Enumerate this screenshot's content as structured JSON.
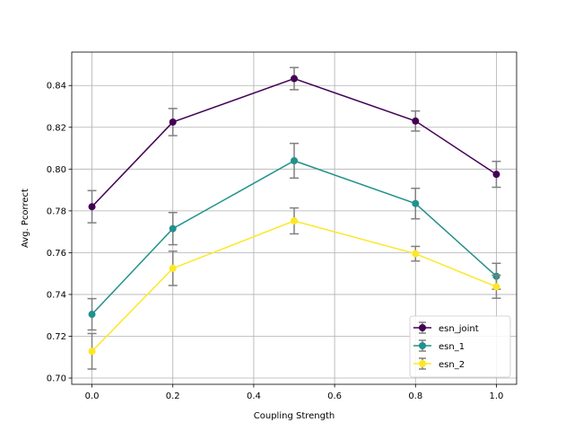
{
  "chart_data": {
    "type": "line",
    "title": "",
    "xlabel": "Coupling Strength",
    "ylabel": "Avg. Pcorrect",
    "xlim": [
      -0.05,
      1.05
    ],
    "ylim": [
      0.697,
      0.856
    ],
    "xticks": [
      0.0,
      0.2,
      0.4,
      0.6,
      0.8,
      1.0
    ],
    "xtick_labels": [
      "0.0",
      "0.2",
      "0.4",
      "0.6",
      "0.8",
      "1.0"
    ],
    "yticks": [
      0.7,
      0.72,
      0.74,
      0.76,
      0.78,
      0.8,
      0.82,
      0.84
    ],
    "ytick_labels": [
      "0.70",
      "0.72",
      "0.74",
      "0.76",
      "0.78",
      "0.80",
      "0.82",
      "0.84"
    ],
    "grid": true,
    "legend_position": "lower-right",
    "errorbar_color": "#808080",
    "x": [
      0.0,
      0.2,
      0.5,
      0.8,
      1.0
    ],
    "series": [
      {
        "name": "esn_joint",
        "color": "#440154",
        "values": [
          0.782,
          0.8225,
          0.8433,
          0.823,
          0.7975
        ],
        "errors": [
          0.0077,
          0.0065,
          0.0053,
          0.0048,
          0.0062
        ]
      },
      {
        "name": "esn_1",
        "color": "#21918c",
        "values": [
          0.7305,
          0.7715,
          0.804,
          0.7835,
          0.7487
        ],
        "errors": [
          0.0075,
          0.0077,
          0.0083,
          0.0073,
          0.0062
        ]
      },
      {
        "name": "esn_2",
        "color": "#fde725",
        "values": [
          0.7128,
          0.7525,
          0.7752,
          0.7595,
          0.7437
        ],
        "errors": [
          0.0085,
          0.0082,
          0.0062,
          0.0035,
          0.0055
        ]
      }
    ]
  }
}
